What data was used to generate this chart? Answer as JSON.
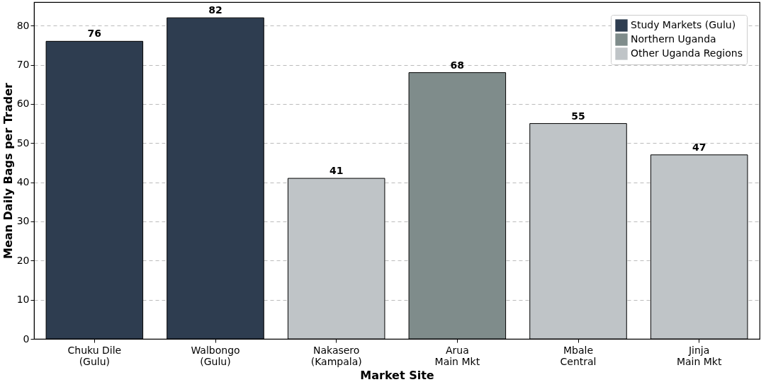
{
  "chart_data": {
    "type": "bar",
    "xlabel": "Market Site",
    "ylabel": "Mean Daily Bags per Trader",
    "categories": [
      "Chuku Dile\n(Gulu)",
      "Walbongo\n(Gulu)",
      "Nakasero\n(Kampala)",
      "Arua\nMain Mkt",
      "Mbale\nCentral",
      "Jinja\nMain Mkt"
    ],
    "series": [
      {
        "name": "Study Markets (Gulu)",
        "color": "#2e3d50",
        "values": [
          76,
          82,
          null,
          null,
          null,
          null
        ]
      },
      {
        "name": "Northern Uganda",
        "color": "#7f8c8b",
        "values": [
          null,
          null,
          null,
          68,
          null,
          null
        ]
      },
      {
        "name": "Other Uganda Regions",
        "color": "#bfc4c7",
        "values": [
          null,
          null,
          41,
          null,
          55,
          47
        ]
      }
    ],
    "data_labels": true,
    "ylim": [
      0,
      86
    ],
    "yticks": [
      0,
      10,
      20,
      30,
      40,
      50,
      60,
      70,
      80
    ],
    "grid": "y",
    "legend": "top right"
  }
}
